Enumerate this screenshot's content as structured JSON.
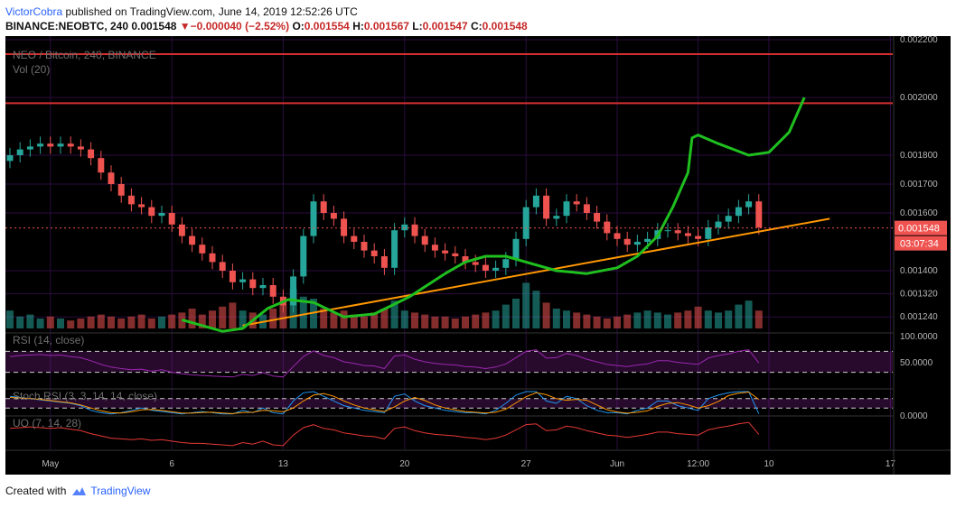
{
  "header": {
    "author": "VictorCobra",
    "published_text": "published on TradingView.com, June 14, 2019 12:52:26 UTC",
    "symbol": "BINANCE:NEOBTC, 240",
    "last": "0.001548",
    "change": "−0.000040 (−2.52%)",
    "o_label": "O:",
    "o_value": "0.001554",
    "h_label": "H:",
    "h_value": "0.001567",
    "l_label": "L:",
    "l_value": "0.001547",
    "c_label": "C:",
    "c_value": "0.001548"
  },
  "footer": {
    "created_with": "Created with",
    "brand": "TradingView"
  },
  "colors": {
    "background": "#000000",
    "grid": "#2b0d3f",
    "up": "#26a69a",
    "down": "#ef5350",
    "resistance": "#d32f2f",
    "trendline": "#ff9800",
    "projection": "#1fbf1f",
    "rsi": "#9c27b0",
    "stoch_k": "#2196f3",
    "stoch_d": "#ff9800",
    "uo": "#e53935",
    "price_line": "#ef5350"
  },
  "chart_data": {
    "type": "candlestick",
    "title": "NEO / Bitcoin, 240, BINANCE",
    "volume_label": "Vol (20)",
    "ylim": [
      0.0012,
      0.0022
    ],
    "y_ticks": [
      "0.002200",
      "0.002000",
      "0.001800",
      "0.001700",
      "0.001600",
      "0.001400",
      "0.001320",
      "0.001240"
    ],
    "x_ticks": [
      "May",
      "6",
      "13",
      "20",
      "27",
      "Jun",
      "12:00",
      "10",
      "17"
    ],
    "last_price": "0.001548",
    "countdown": "03:07:34",
    "rsi_label": "RSI (14, close)",
    "rsi_ticks": [
      "100.0000",
      "50.0000"
    ],
    "stoch_label": "Stoch RSI (3, 3, 14, 14, close)",
    "stoch_ticks": [
      "0.0000"
    ],
    "uo_label": "UO (7, 14, 28)",
    "resistance_levels": [
      0.00215,
      0.00198
    ],
    "trendline": {
      "from": {
        "x": "May 13",
        "y": 0.00121
      },
      "to": {
        "x": "Jun 18",
        "y": 0.00158
      }
    },
    "projection_path": [
      [
        0.0,
        0.00123
      ],
      [
        4.0,
        0.00119
      ],
      [
        6.0,
        0.0012
      ],
      [
        8.5,
        0.00127
      ],
      [
        10.5,
        0.0013
      ],
      [
        13.0,
        0.00129
      ],
      [
        16.0,
        0.00124
      ],
      [
        19.0,
        0.00125
      ],
      [
        22.5,
        0.00131
      ],
      [
        26.0,
        0.00139
      ],
      [
        28.0,
        0.00143
      ],
      [
        30.0,
        0.00145
      ],
      [
        32.0,
        0.00145
      ],
      [
        34.0,
        0.00143
      ],
      [
        37.0,
        0.0014
      ],
      [
        40.0,
        0.00139
      ],
      [
        43.0,
        0.00141
      ],
      [
        45.0,
        0.00145
      ],
      [
        47.0,
        0.00152
      ],
      [
        48.5,
        0.00162
      ],
      [
        50.0,
        0.00174
      ],
      [
        50.4,
        0.00186
      ],
      [
        51.0,
        0.00187
      ],
      [
        53.0,
        0.00184
      ],
      [
        56.0,
        0.0018
      ],
      [
        58.0,
        0.00181
      ],
      [
        60.0,
        0.00188
      ],
      [
        61.5,
        0.002
      ]
    ],
    "series": [
      {
        "name": "NEOBTC",
        "close": [
          0.0018,
          0.00182,
          0.00183,
          0.00184,
          0.00183,
          0.00184,
          0.00183,
          0.00182,
          0.00179,
          0.00174,
          0.0017,
          0.00166,
          0.00163,
          0.00162,
          0.00159,
          0.0016,
          0.00156,
          0.00152,
          0.00149,
          0.00146,
          0.00143,
          0.0014,
          0.00136,
          0.00137,
          0.00134,
          0.00135,
          0.00131,
          0.00128,
          0.00138,
          0.00152,
          0.00164,
          0.0016,
          0.00158,
          0.00152,
          0.0015,
          0.00147,
          0.00145,
          0.00141,
          0.00154,
          0.00156,
          0.00152,
          0.00149,
          0.00147,
          0.00146,
          0.00145,
          0.00143,
          0.00142,
          0.0014,
          0.00141,
          0.00144,
          0.00151,
          0.00162,
          0.00166,
          0.00158,
          0.00159,
          0.00164,
          0.00163,
          0.0016,
          0.00157,
          0.00153,
          0.00151,
          0.00149,
          0.0015,
          0.00151,
          0.00154,
          0.00154,
          0.00153,
          0.00152,
          0.00151,
          0.00155,
          0.00157,
          0.00159,
          0.00162,
          0.00164,
          0.00155
        ]
      }
    ],
    "volume": [
      0.9,
      0.6,
      0.7,
      0.5,
      0.6,
      0.5,
      0.4,
      0.5,
      0.6,
      0.7,
      0.6,
      0.5,
      0.6,
      0.7,
      0.5,
      0.6,
      0.7,
      0.8,
      1.0,
      0.7,
      0.9,
      1.1,
      1.3,
      0.9,
      0.8,
      0.7,
      1.0,
      1.2,
      2.0,
      1.6,
      1.5,
      1.0,
      0.8,
      0.9,
      0.7,
      0.6,
      0.8,
      1.0,
      1.4,
      0.9,
      0.8,
      0.7,
      0.6,
      0.6,
      0.5,
      0.6,
      0.7,
      0.8,
      0.9,
      1.2,
      1.5,
      2.3,
      1.9,
      1.3,
      1.0,
      0.9,
      0.8,
      0.7,
      0.6,
      0.5,
      0.6,
      0.7,
      0.8,
      0.9,
      0.8,
      0.7,
      0.8,
      0.9,
      1.1,
      0.9,
      0.8,
      0.9,
      1.2,
      1.4,
      0.9
    ],
    "rsi": [
      60,
      62,
      63,
      64,
      62,
      63,
      60,
      58,
      52,
      45,
      40,
      37,
      35,
      36,
      32,
      35,
      30,
      27,
      25,
      24,
      23,
      22,
      21,
      26,
      24,
      29,
      23,
      21,
      41,
      60,
      71,
      62,
      58,
      50,
      47,
      43,
      42,
      37,
      61,
      63,
      55,
      50,
      47,
      45,
      44,
      41,
      40,
      37,
      40,
      46,
      58,
      70,
      73,
      57,
      58,
      66,
      62,
      55,
      50,
      45,
      43,
      41,
      44,
      46,
      52,
      52,
      49,
      47,
      45,
      57,
      62,
      65,
      70,
      73,
      48
    ],
    "stoch_k": [
      80,
      75,
      70,
      65,
      60,
      55,
      50,
      40,
      20,
      10,
      5,
      10,
      20,
      30,
      20,
      15,
      10,
      5,
      10,
      15,
      10,
      5,
      5,
      20,
      10,
      30,
      10,
      5,
      60,
      95,
      100,
      80,
      60,
      40,
      30,
      20,
      15,
      10,
      80,
      90,
      60,
      40,
      30,
      20,
      15,
      10,
      10,
      5,
      20,
      50,
      85,
      100,
      100,
      60,
      50,
      80,
      70,
      40,
      20,
      10,
      10,
      5,
      20,
      30,
      60,
      60,
      40,
      30,
      20,
      70,
      85,
      95,
      100,
      100,
      5
    ],
    "stoch_d": [
      75,
      73,
      70,
      67,
      62,
      57,
      52,
      43,
      30,
      18,
      10,
      9,
      14,
      22,
      24,
      20,
      14,
      9,
      8,
      11,
      12,
      9,
      6,
      11,
      12,
      20,
      18,
      14,
      30,
      60,
      85,
      92,
      80,
      60,
      43,
      30,
      22,
      15,
      35,
      60,
      75,
      62,
      43,
      30,
      22,
      15,
      12,
      9,
      12,
      25,
      52,
      78,
      95,
      87,
      70,
      63,
      67,
      63,
      43,
      23,
      13,
      8,
      12,
      18,
      37,
      50,
      53,
      43,
      30,
      40,
      58,
      83,
      93,
      98,
      67
    ],
    "uo": [
      55,
      56,
      57,
      56,
      55,
      56,
      54,
      52,
      48,
      45,
      42,
      41,
      40,
      41,
      39,
      40,
      38,
      36,
      35,
      35,
      34,
      33,
      32,
      36,
      34,
      38,
      33,
      32,
      46,
      56,
      60,
      55,
      53,
      49,
      47,
      45,
      44,
      41,
      55,
      57,
      52,
      49,
      47,
      46,
      45,
      43,
      42,
      40,
      42,
      46,
      53,
      60,
      61,
      52,
      53,
      58,
      56,
      52,
      49,
      46,
      45,
      43,
      45,
      47,
      50,
      50,
      48,
      47,
      46,
      53,
      56,
      58,
      61,
      63,
      47
    ]
  }
}
